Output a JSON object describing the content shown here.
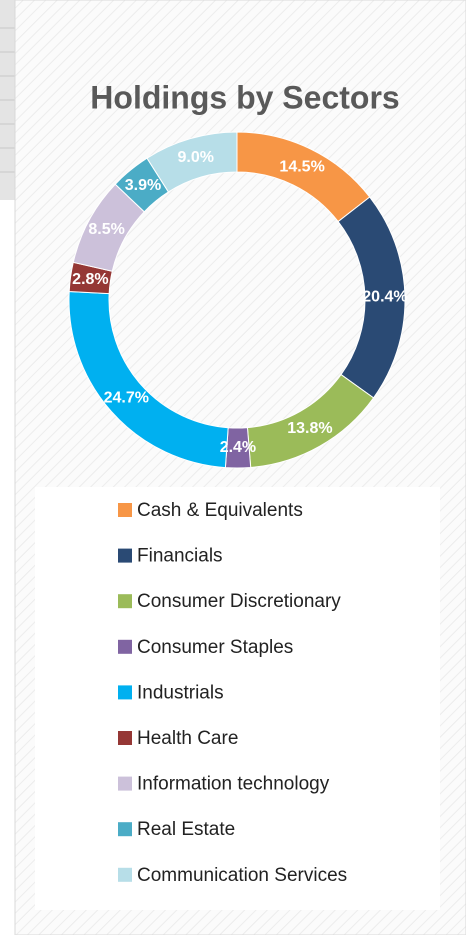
{
  "chart_data": {
    "type": "doughnut",
    "title": "Holdings by Sectors",
    "categories": [
      "Cash & Equivalents",
      "Financials",
      "Consumer Discretionary",
      "Consumer Staples",
      "Industrials",
      "Health Care",
      "Information technology",
      "Real Estate",
      "Communication Services"
    ],
    "values": [
      14.5,
      20.4,
      13.8,
      2.4,
      24.7,
      2.8,
      8.5,
      3.9,
      9.0
    ],
    "value_labels": [
      "14.5%",
      "20.4%",
      "13.8%",
      "2.4%",
      "24.7%",
      "2.8%",
      "8.5%",
      "3.9%",
      "9.0%"
    ],
    "colors": [
      "#f79646",
      "#2a4a74",
      "#9bbb59",
      "#8064a2",
      "#00b0f0",
      "#953735",
      "#ccc1da",
      "#4bacc6",
      "#b7dee8"
    ],
    "legend": "bottom"
  }
}
